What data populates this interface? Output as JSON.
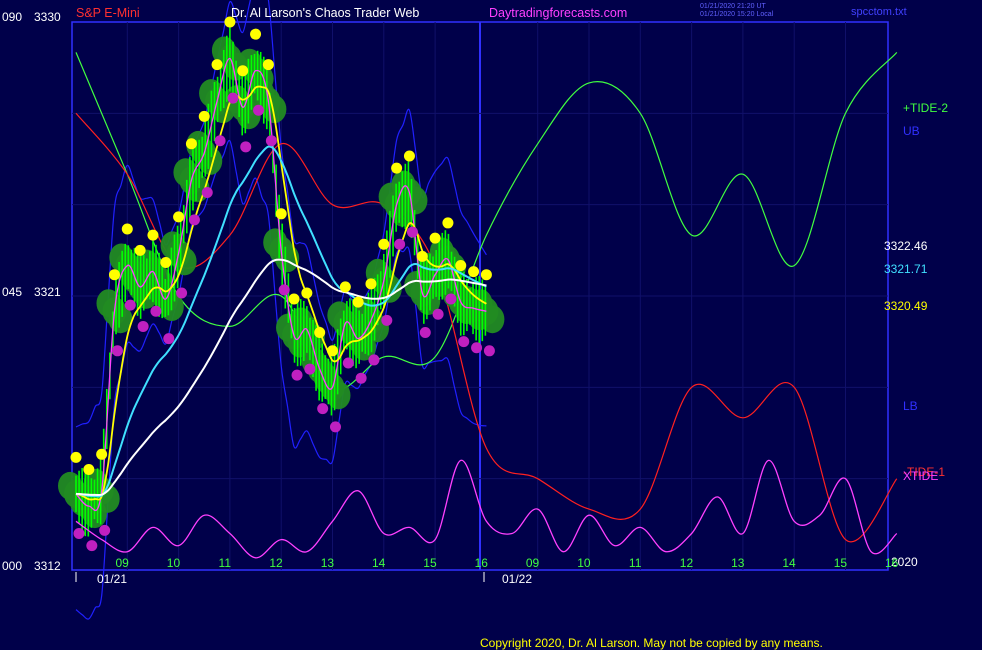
{
  "header": {
    "instrument": "S&P E-Mini",
    "site_title": "Dr. Al Larson's Chaos Trader Web",
    "url": "Daytradingforecasts.com",
    "stamp_1": "01/21/2020 21:20 UT",
    "stamp_2": "01/21/2020 15:20 Local",
    "file_name": "spcctom.txt"
  },
  "left_axis": {
    "top_a": "090",
    "top_b": "3330",
    "mid_a": "045",
    "mid_b": "3321",
    "bot_a": "000",
    "bot_b": "3312"
  },
  "right_labels": {
    "tide2": "+TIDE-2",
    "ub": "UB",
    "lb": "LB",
    "tide1": "-TIDE-1",
    "xtide": "XTIDE",
    "v1": "3322.46",
    "v2": "3321.71",
    "v3": "3320.49",
    "year": "2020"
  },
  "x_axis": {
    "hours": [
      "09",
      "10",
      "11",
      "12",
      "13",
      "14",
      "15",
      "16",
      "09",
      "10",
      "11",
      "12",
      "13",
      "14",
      "15",
      "16"
    ],
    "dates": [
      "01/21",
      "01/22"
    ]
  },
  "footer": {
    "copyright": "Copyright 2020, Dr. Al Larson. May not be copied by any means."
  },
  "colors": {
    "background": "#00004a",
    "frame": "#3030ff",
    "price_bars": "#00ff00",
    "ema_fast": "#ffff00",
    "ema_mid": "#40e0ff",
    "ema_slow": "#ffffff",
    "tide1": "#ff2020",
    "tide2": "#40ff40",
    "upper_band": "#2020ff",
    "xtide": "#ff40ff",
    "bubble": "#228b22"
  },
  "chart_data": {
    "type": "line",
    "title": "S&P E-Mini",
    "y_price_range": [
      3312,
      3330
    ],
    "y_cycle_range": [
      0,
      90
    ],
    "x_hours": [
      9,
      10,
      11,
      12,
      13,
      14,
      15,
      16
    ],
    "series": [
      {
        "name": "XTIDE",
        "x": [
          0,
          0.5,
          1,
          1.5,
          2,
          2.5,
          3,
          3.5,
          4,
          4.5,
          5,
          5.5,
          6,
          6.5,
          7,
          7.5,
          8,
          8.5,
          9,
          9.5,
          10,
          10.5,
          11,
          11.5,
          12,
          12.5,
          13,
          13.5,
          14,
          14.5,
          15,
          15.5,
          16
        ],
        "values": [
          8,
          5,
          3,
          7,
          4,
          9,
          6,
          2,
          5,
          3,
          8,
          13,
          6,
          7,
          5,
          18,
          8,
          6,
          10,
          3,
          9,
          4,
          7,
          3,
          6,
          12,
          6,
          18,
          8,
          9,
          15,
          3,
          6
        ]
      },
      {
        "name": "+TIDE-2",
        "x": [
          0,
          1,
          2,
          3,
          4,
          5,
          6,
          7,
          8,
          9,
          10,
          11,
          12,
          13,
          14,
          15,
          16
        ],
        "values": [
          3329,
          3325,
          3321,
          3320,
          3321,
          3318,
          3319,
          3319,
          3323,
          3326,
          3328,
          3327,
          3323,
          3325,
          3322,
          3327,
          3329
        ]
      },
      {
        "name": "-TIDE-1",
        "x": [
          0,
          1,
          2,
          3,
          4,
          5,
          6,
          7,
          8,
          9,
          10,
          11,
          12,
          13,
          14,
          15,
          16
        ],
        "values": [
          3327,
          3325,
          3322,
          3323,
          3326,
          3324,
          3324,
          3322,
          3316,
          3315,
          3314,
          3314,
          3318,
          3317,
          3318,
          3313,
          3315
        ]
      }
    ],
    "price": {
      "x": [
        0,
        0.25,
        0.5,
        0.75,
        1,
        1.25,
        1.5,
        1.75,
        2,
        2.25,
        2.5,
        2.75,
        3,
        3.25,
        3.5,
        3.75,
        4,
        4.25,
        4.5,
        4.75,
        5,
        5.25,
        5.5,
        5.75,
        6,
        6.25,
        6.5,
        6.75,
        7,
        7.25,
        7.5,
        7.75,
        8
      ],
      "values": [
        3314.5,
        3314.1,
        3314.6,
        3320.5,
        3322.0,
        3321.3,
        3321.8,
        3320.9,
        3322.4,
        3324.8,
        3325.7,
        3327.4,
        3328.8,
        3327.2,
        3328.4,
        3327.4,
        3322.5,
        3319.7,
        3319.9,
        3318.6,
        3318.0,
        3320.1,
        3319.6,
        3320.2,
        3321.5,
        3324.0,
        3324.4,
        3321.1,
        3321.7,
        3322.2,
        3320.8,
        3320.6,
        3320.5
      ]
    },
    "levels": [
      3322.46,
      3321.71,
      3320.49
    ]
  }
}
